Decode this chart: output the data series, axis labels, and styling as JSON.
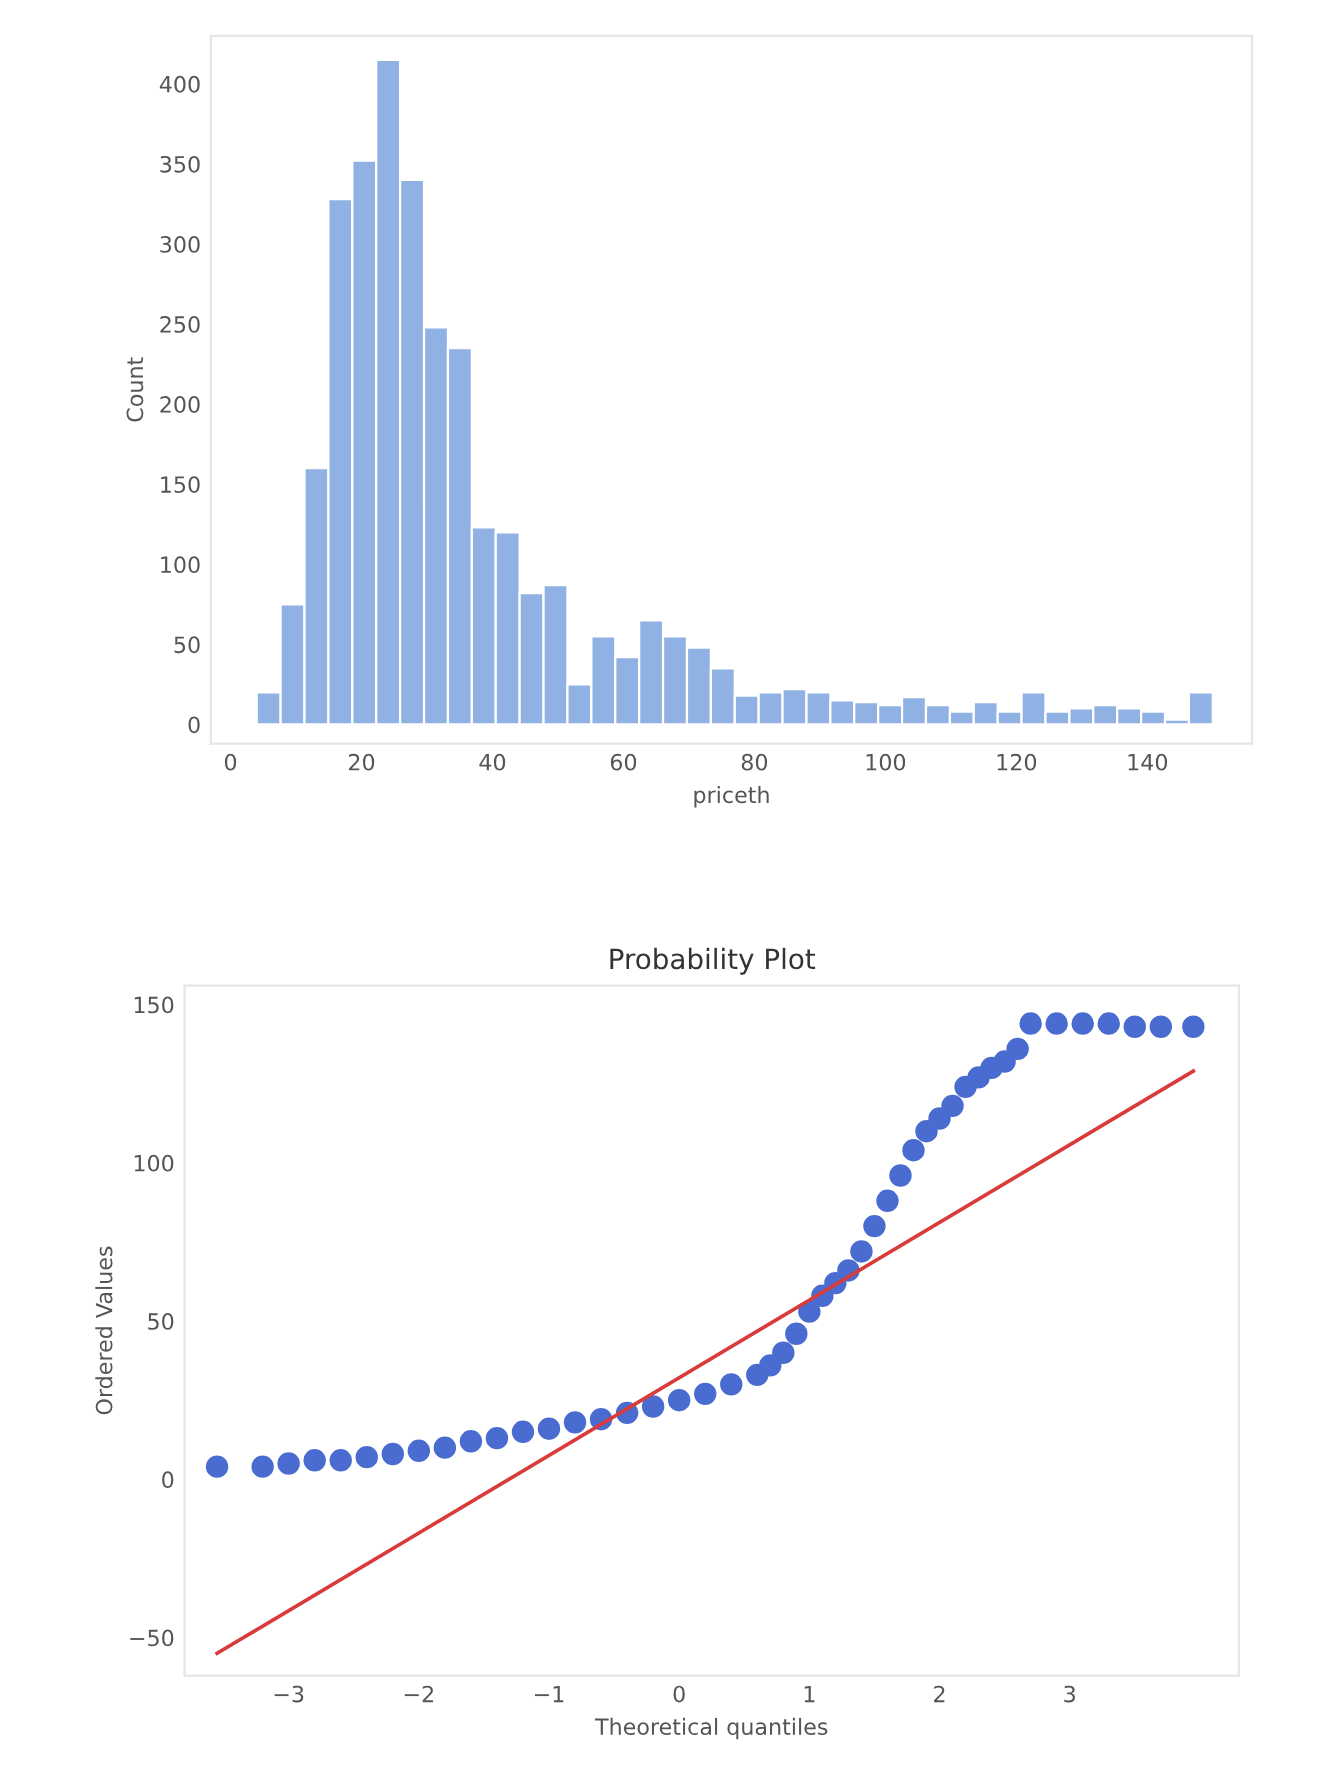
{
  "chart_data": [
    {
      "type": "histogram",
      "xlabel": "priceth",
      "ylabel": "Count",
      "color": "#8fb1e3",
      "bins": [
        4,
        7.65,
        11.3,
        14.95,
        18.6,
        22.25,
        25.9,
        29.55,
        33.2,
        36.85,
        40.5,
        44.15,
        47.8,
        51.45,
        55.1,
        58.75,
        62.4,
        66.05,
        69.7,
        73.35,
        77,
        80.65,
        84.3,
        87.95,
        91.6,
        95.25,
        98.9,
        102.55,
        106.2,
        109.85,
        113.5,
        117.15,
        120.8,
        124.45,
        128.1,
        131.75,
        135.4,
        139.05,
        142.7,
        146.35,
        150
      ],
      "values": [
        20,
        75,
        160,
        328,
        352,
        415,
        340,
        248,
        235,
        123,
        120,
        82,
        87,
        25,
        55,
        42,
        65,
        55,
        48,
        35,
        18,
        20,
        22,
        20,
        15,
        14,
        12,
        17,
        12,
        8,
        14,
        8,
        20,
        8,
        10,
        12,
        10,
        8,
        3,
        20
      ],
      "xlim": [
        -3,
        156
      ],
      "xticks": [
        0,
        20,
        40,
        60,
        80,
        100,
        120,
        140
      ],
      "ylim": [
        -12,
        430
      ],
      "yticks": [
        0,
        50,
        100,
        150,
        200,
        250,
        300,
        350,
        400
      ]
    },
    {
      "type": "scatter",
      "title": "Probability Plot",
      "xlabel": "Theoretical quantiles",
      "ylabel": "Ordered Values",
      "series": [
        {
          "type": "scatter",
          "marker": "circle",
          "color": "#4a6cd0",
          "x": [
            -3.55,
            -3.2,
            -3.0,
            -2.8,
            -2.6,
            -2.4,
            -2.2,
            -2.0,
            -1.8,
            -1.6,
            -1.4,
            -1.2,
            -1.0,
            -0.8,
            -0.6,
            -0.4,
            -0.2,
            0.0,
            0.2,
            0.4,
            0.6,
            0.7,
            0.8,
            0.9,
            1.0,
            1.1,
            1.2,
            1.3,
            1.4,
            1.5,
            1.6,
            1.7,
            1.8,
            1.9,
            2.0,
            2.1,
            2.2,
            2.3,
            2.4,
            2.5,
            2.6,
            2.7,
            2.9,
            3.1,
            3.3,
            3.5,
            3.7,
            3.95
          ],
          "values": [
            4,
            4,
            5,
            6,
            6,
            7,
            8,
            9,
            10,
            12,
            13,
            15,
            16,
            18,
            19,
            21,
            23,
            25,
            27,
            30,
            33,
            36,
            40,
            46,
            53,
            58,
            62,
            66,
            72,
            80,
            88,
            96,
            104,
            110,
            114,
            118,
            124,
            127,
            130,
            132,
            136,
            144,
            144,
            144,
            144,
            143,
            143,
            143
          ]
        },
        {
          "type": "line",
          "color": "#d93b3b",
          "x": [
            -3.55,
            3.95
          ],
          "values": [
            -55,
            129
          ]
        }
      ],
      "xlim": [
        -3.8,
        4.3
      ],
      "xticks": [
        {
          "value": -3,
          "label": "−3"
        },
        {
          "value": -2,
          "label": "−2"
        },
        {
          "value": -1,
          "label": "−1"
        },
        0,
        1,
        2,
        3
      ],
      "ylim": [
        -62,
        156
      ],
      "yticks": [
        {
          "value": -50,
          "label": "−50"
        },
        0,
        50,
        100,
        150
      ]
    }
  ]
}
